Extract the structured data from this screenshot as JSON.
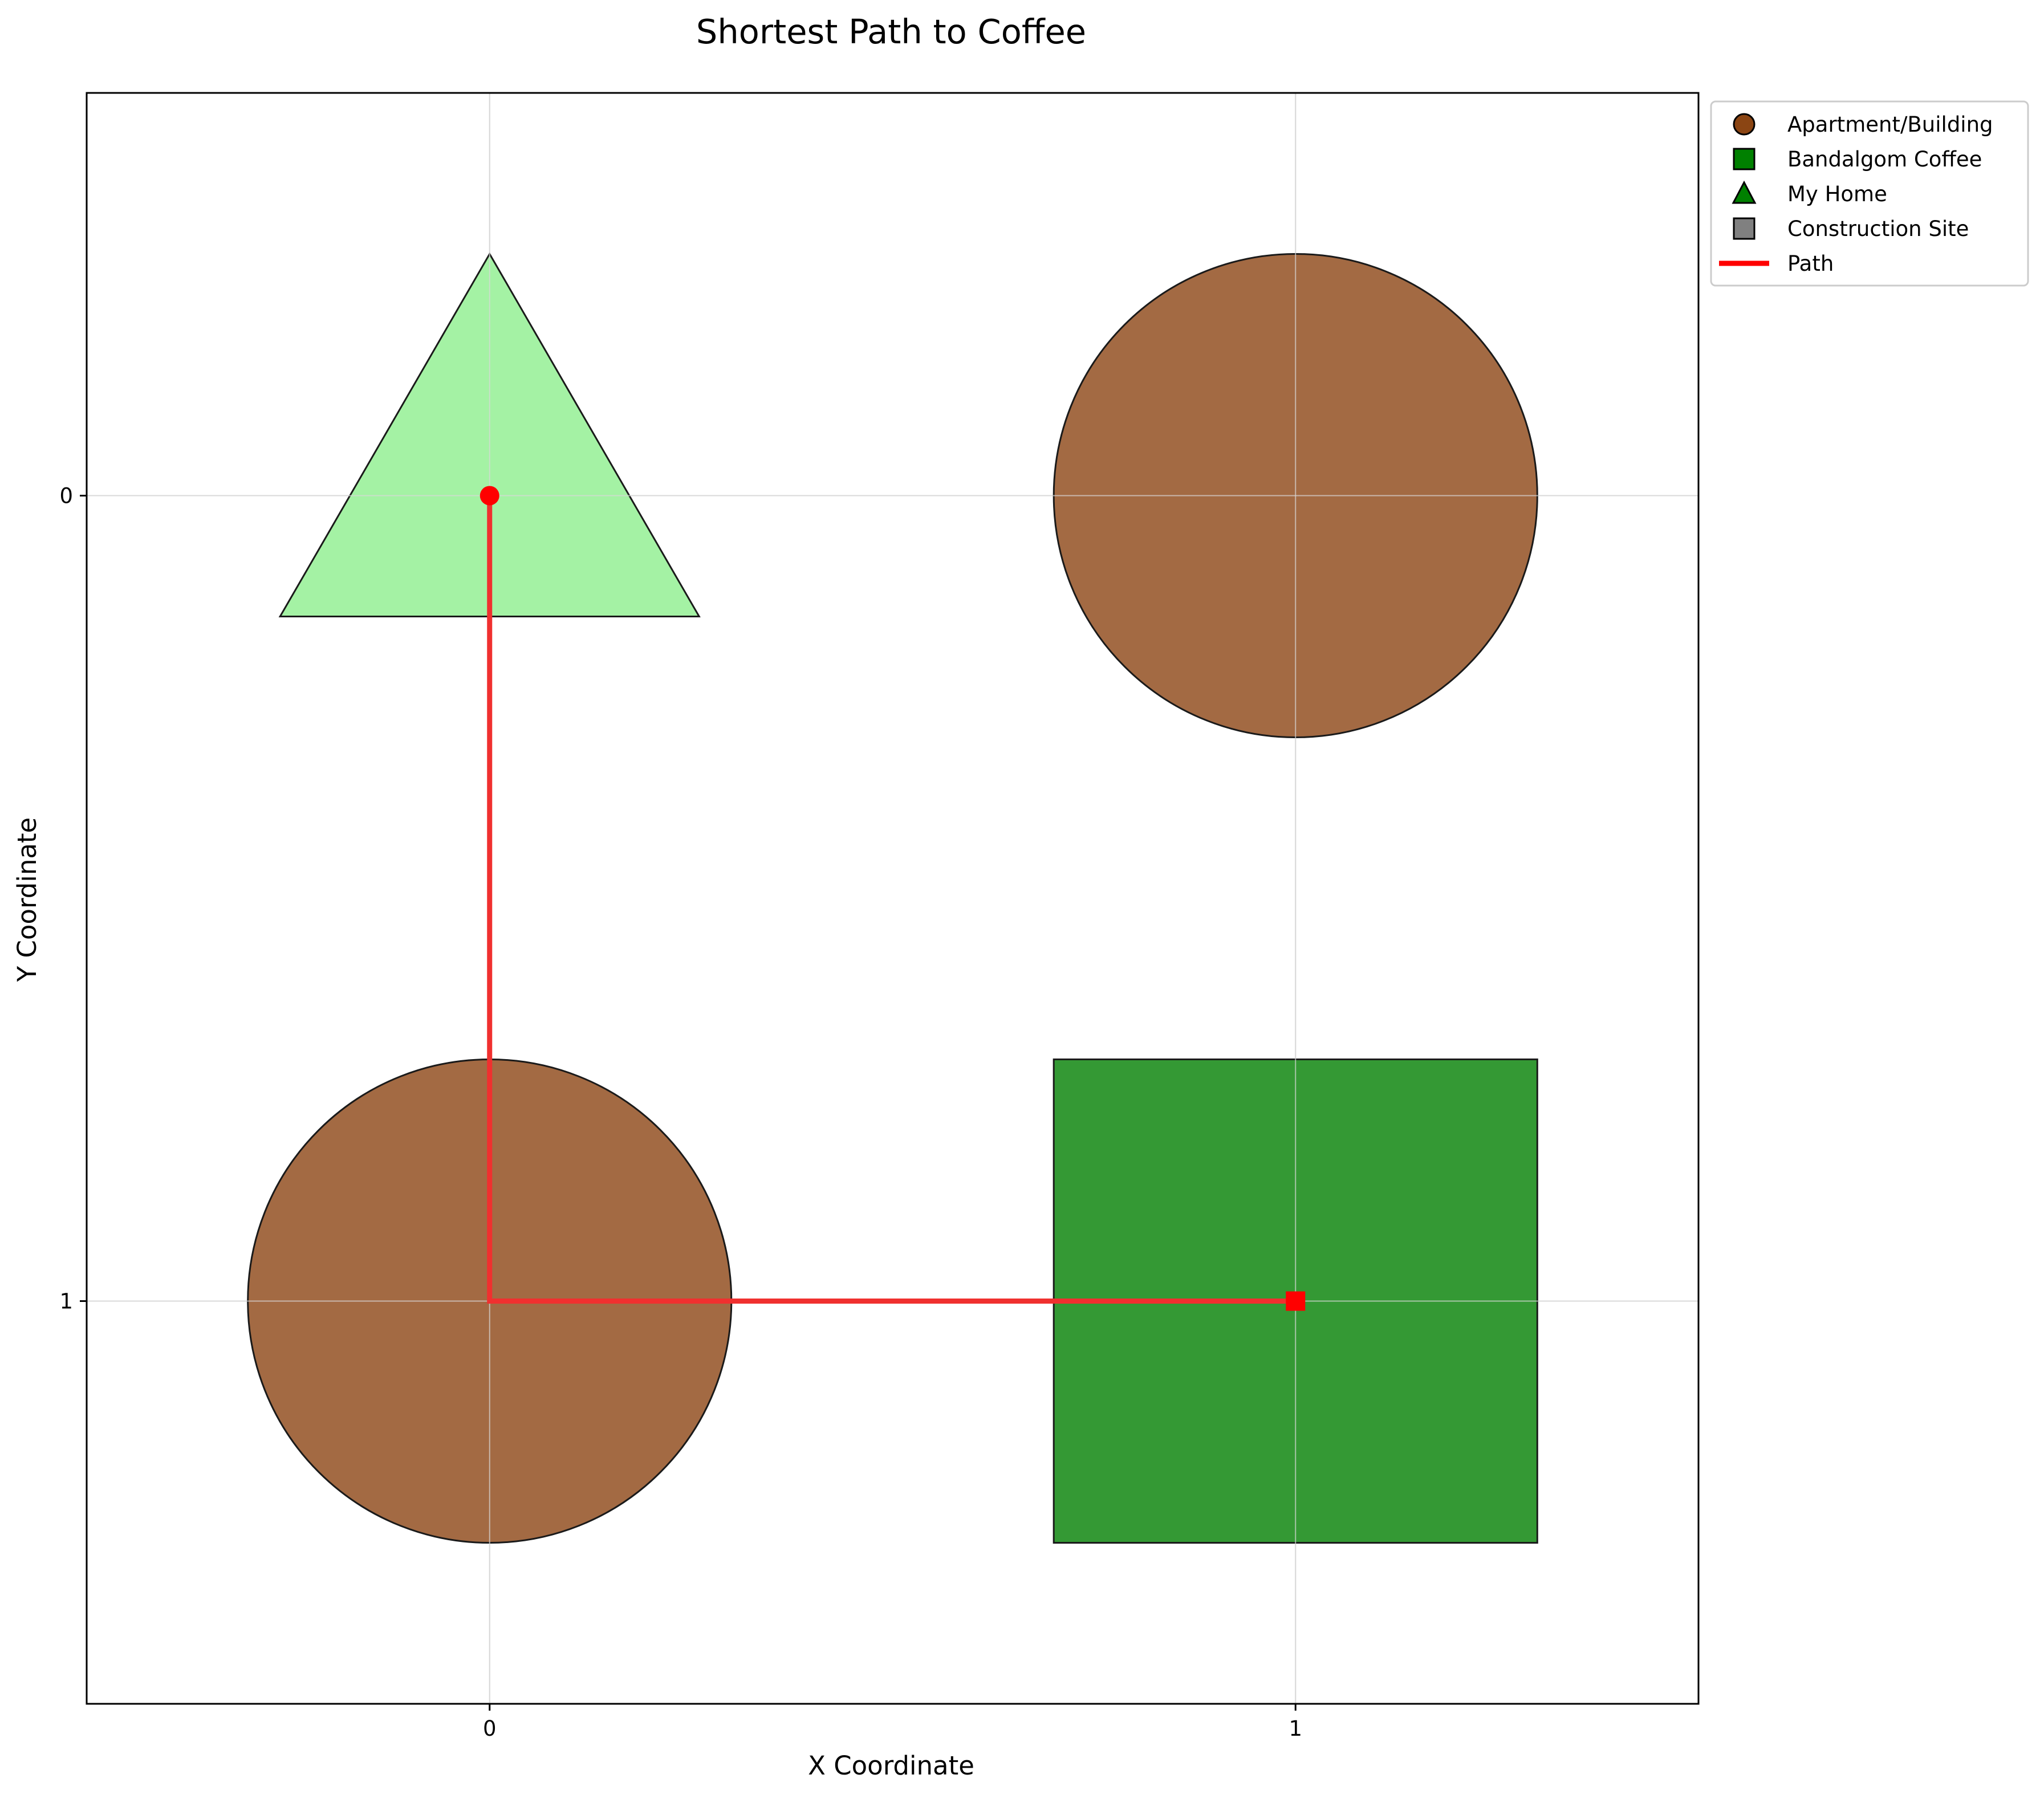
{
  "chart_data": {
    "type": "scatter",
    "title": "Shortest Path to Coffee",
    "xlabel": "X Coordinate",
    "ylabel": "Y Coordinate",
    "xlim": [
      -0.5,
      1.5
    ],
    "ylim": [
      1.5,
      -0.5
    ],
    "y_inverted": true,
    "grid": true,
    "legend_position": "outside-top-right",
    "x_ticks": [
      "0",
      "1"
    ],
    "y_ticks": [
      "0",
      "1"
    ],
    "legend": [
      {
        "label": "Apartment/Building",
        "marker": "circle",
        "color": "#8b4513"
      },
      {
        "label": "Bandalgom Coffee",
        "marker": "square",
        "color": "#008000"
      },
      {
        "label": "My Home",
        "marker": "triangle",
        "color": "#008000"
      },
      {
        "label": "Construction Site",
        "marker": "square",
        "color": "#808080"
      },
      {
        "label": "Path",
        "marker": "line",
        "color": "#ff0000"
      }
    ],
    "cells": [
      {
        "x": 0,
        "y": 0,
        "kind": "My Home",
        "shape": "triangle",
        "color": "#a4f2a4"
      },
      {
        "x": 1,
        "y": 0,
        "kind": "Apartment/Building",
        "shape": "circle",
        "color": "#a36a43"
      },
      {
        "x": 0,
        "y": 1,
        "kind": "Apartment/Building",
        "shape": "circle",
        "color": "#a36a43"
      },
      {
        "x": 1,
        "y": 1,
        "kind": "Bandalgom Coffee",
        "shape": "square",
        "color": "#349934"
      }
    ],
    "path": {
      "points": [
        [
          0,
          0
        ],
        [
          0,
          1
        ],
        [
          1,
          1
        ]
      ],
      "color": "#f0302f",
      "start": [
        0,
        0
      ],
      "end": [
        1,
        1
      ]
    }
  }
}
